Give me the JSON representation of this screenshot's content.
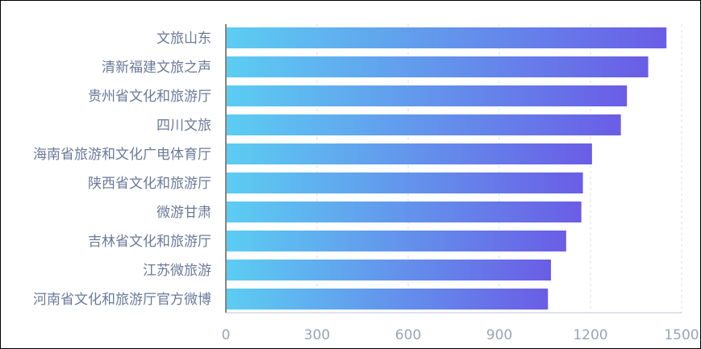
{
  "chart_data": {
    "type": "bar",
    "orientation": "horizontal",
    "categories": [
      "文旅山东",
      "清新福建文旅之声",
      "贵州省文化和旅游厅",
      "四川文旅",
      "海南省旅游和文化广电体育厅",
      "陕西省文化和旅游厅",
      "微游甘肃",
      "吉林省文化和旅游厅",
      "江苏微旅游",
      "河南省文化和旅游厅官方微博"
    ],
    "values": [
      1450,
      1390,
      1320,
      1300,
      1205,
      1175,
      1170,
      1120,
      1070,
      1060
    ],
    "xlim": [
      0,
      1500
    ],
    "xticks": [
      "0",
      "300",
      "600",
      "900",
      "1200",
      "1500"
    ],
    "grid": "vertical dashed",
    "colors": {
      "bar_start": "#5ccdf2",
      "bar_end": "#6a5de6"
    }
  }
}
